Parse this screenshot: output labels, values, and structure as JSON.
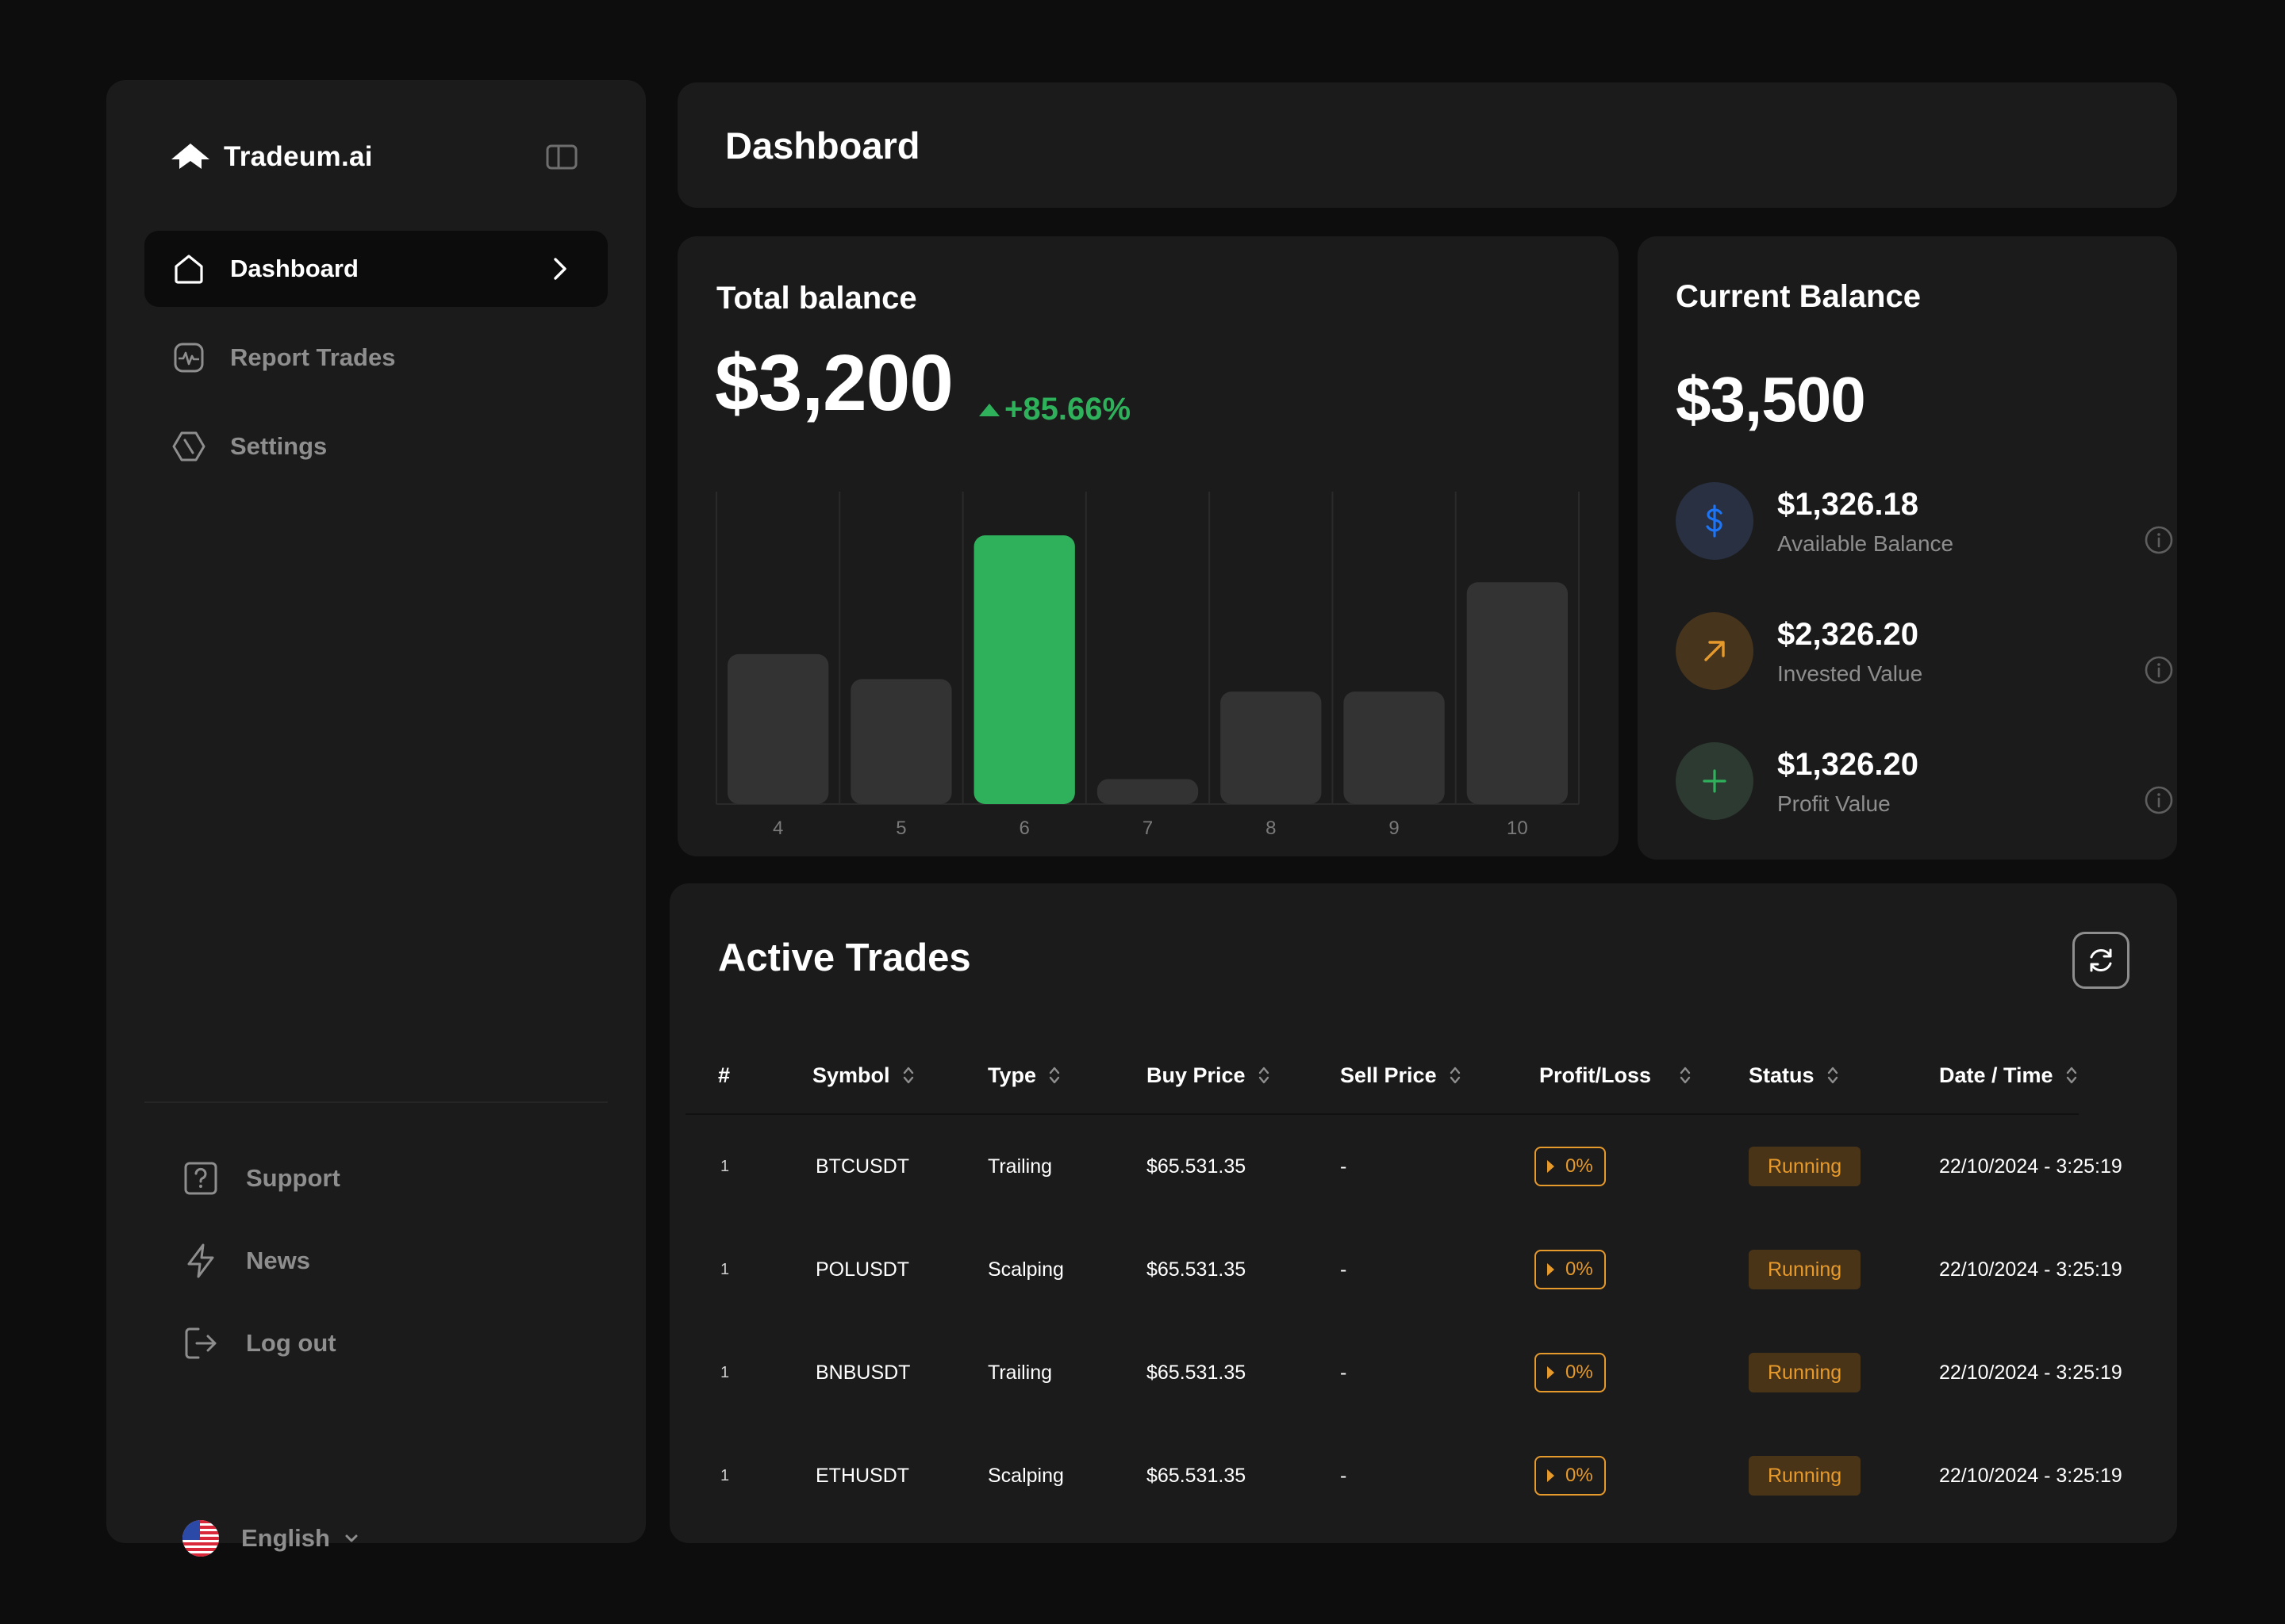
{
  "brand": {
    "name": "Tradeum.ai"
  },
  "sidebar": {
    "items": [
      {
        "label": "Dashboard"
      },
      {
        "label": "Report Trades"
      },
      {
        "label": "Settings"
      }
    ],
    "footer": [
      {
        "label": "Support"
      },
      {
        "label": "News"
      },
      {
        "label": "Log out"
      }
    ],
    "language": "English"
  },
  "header": {
    "title": "Dashboard"
  },
  "total_balance": {
    "label": "Total balance",
    "amount": "$3,200",
    "change": "+85.66%"
  },
  "chart_data": {
    "type": "bar",
    "categories": [
      "4",
      "5",
      "6",
      "7",
      "8",
      "9",
      "10"
    ],
    "values": [
      48,
      40,
      86,
      8,
      36,
      36,
      71
    ],
    "highlight_index": 2,
    "ylim": [
      0,
      100
    ],
    "colors": {
      "bar": "#333333",
      "highlight": "#2fb15c",
      "grid": "#2a2a2a",
      "tick": "#7a7a7a"
    },
    "title": "",
    "xlabel": "",
    "ylabel": ""
  },
  "current_balance": {
    "label": "Current Balance",
    "amount": "$3,500",
    "rows": [
      {
        "value": "$1,326.18",
        "label": "Available Balance",
        "icon": "dollar-icon",
        "color": "#1d74f5"
      },
      {
        "value": "$2,326.20",
        "label": "Invested Value",
        "icon": "arrow-up-right-icon",
        "color": "#e79a2c"
      },
      {
        "value": "$1,326.20",
        "label": "Profit Value",
        "icon": "plus-icon",
        "color": "#2fb15c"
      }
    ]
  },
  "trades": {
    "title": "Active Trades",
    "columns": [
      "#",
      "Symbol",
      "Type",
      "Buy Price",
      "Sell Price",
      "Profit/Loss",
      "Status",
      "Date / Time"
    ],
    "rows": [
      {
        "num": "1",
        "symbol": "BTCUSDT",
        "type": "Trailing",
        "buy": "$65.531.35",
        "sell": "-",
        "pl": "0%",
        "status": "Running",
        "date": "22/10/2024 - 3:25:19"
      },
      {
        "num": "1",
        "symbol": "POLUSDT",
        "type": "Scalping",
        "buy": "$65.531.35",
        "sell": "-",
        "pl": "0%",
        "status": "Running",
        "date": "22/10/2024 - 3:25:19"
      },
      {
        "num": "1",
        "symbol": "BNBUSDT",
        "type": "Trailing",
        "buy": "$65.531.35",
        "sell": "-",
        "pl": "0%",
        "status": "Running",
        "date": "22/10/2024 - 3:25:19"
      },
      {
        "num": "1",
        "symbol": "ETHUSDT",
        "type": "Scalping",
        "buy": "$65.531.35",
        "sell": "-",
        "pl": "0%",
        "status": "Running",
        "date": "22/10/2024 - 3:25:19"
      }
    ]
  }
}
